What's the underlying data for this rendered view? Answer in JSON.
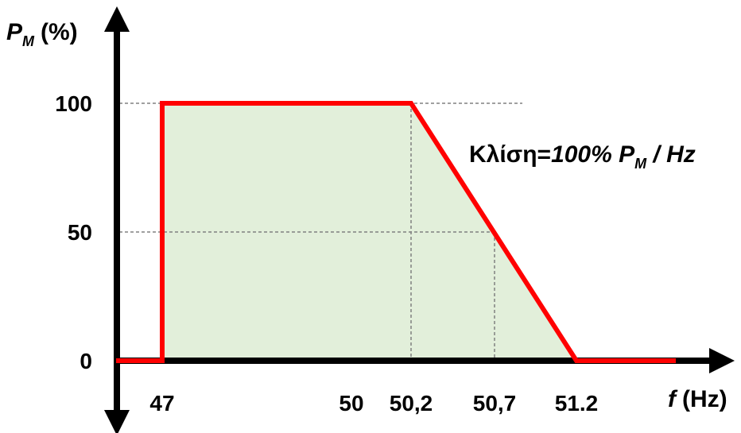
{
  "chart_data": {
    "type": "line",
    "x_tick_labels": [
      "47",
      "50",
      "50,2",
      "50,7",
      "51.2"
    ],
    "x_tick_values": [
      47,
      50,
      50.2,
      50.7,
      51.2
    ],
    "y_tick_labels": [
      "100",
      "50",
      "0"
    ],
    "y_tick_values": [
      100,
      50,
      0
    ],
    "y_label": {
      "main": "P",
      "sub": "M",
      "unit": "(%)"
    },
    "x_label": {
      "main": "f",
      "unit": "(Hz)"
    },
    "annotation": {
      "prefix": "Κλίση=",
      "value": "100% P",
      "sub": "M",
      "suffix": " / Hz"
    },
    "series": [
      {
        "points": [
          [
            46.3,
            0
          ],
          [
            47,
            0
          ],
          [
            47,
            100
          ],
          [
            50.2,
            100
          ],
          [
            51.2,
            0
          ],
          [
            52.1,
            0
          ]
        ]
      }
    ],
    "shaded_area": [
      [
        47,
        0
      ],
      [
        47,
        100
      ],
      [
        50.2,
        100
      ],
      [
        51.2,
        0
      ]
    ],
    "reference_lines": {
      "horizontal": [
        {
          "y": 100,
          "x_to": 51.6
        },
        {
          "y": 50,
          "x_to": 50.7
        }
      ],
      "vertical": [
        {
          "x": 50.2,
          "y_to": 100
        },
        {
          "x": 50.7,
          "y_to": 50
        }
      ]
    },
    "colors": {
      "line": "#ff0000",
      "fill": "#e2efda",
      "axis": "#000000",
      "reference": "#808080"
    }
  }
}
